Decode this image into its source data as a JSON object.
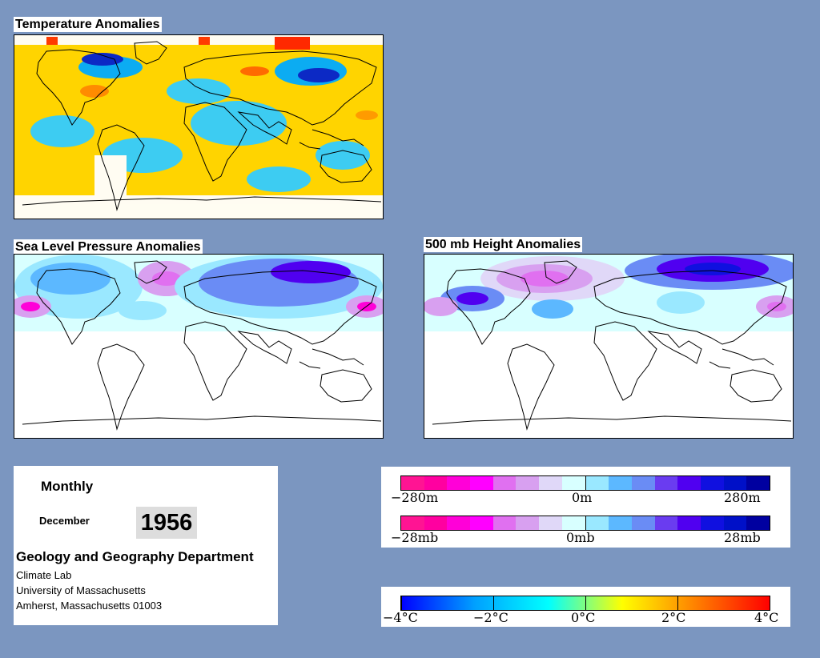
{
  "panels": {
    "temperature": {
      "title": "Temperature Anomalies"
    },
    "slp": {
      "title": "Sea Level Pressure Anomalies"
    },
    "height500": {
      "title": "500 mb Height Anomalies"
    }
  },
  "info": {
    "period": "Monthly",
    "month": "December",
    "year": "1956",
    "department": "Geology and Geography Department",
    "address_lines": [
      "Climate Lab",
      "University of Massachusetts",
      "Amherst, Massachusetts 01003"
    ]
  },
  "legends": {
    "height": {
      "labels": [
        "−280m",
        "0m",
        "280m"
      ],
      "colors": [
        "#ff1493",
        "#ff00a0",
        "#ff00d8",
        "#ff00ff",
        "#e070f0",
        "#d8a0f0",
        "#e0d8f8",
        "#d8ffff",
        "#9ae8ff",
        "#5cb8ff",
        "#6a8cf5",
        "#6a3cf0",
        "#5000f0",
        "#1010e0",
        "#0010c8",
        "#0000a0"
      ]
    },
    "pressure": {
      "labels": [
        "−28mb",
        "0mb",
        "28mb"
      ],
      "colors": [
        "#ff1493",
        "#ff00a0",
        "#ff00d8",
        "#ff00ff",
        "#e070f0",
        "#d8a0f0",
        "#e0d8f8",
        "#d8ffff",
        "#9ae8ff",
        "#5cb8ff",
        "#6a8cf5",
        "#6a3cf0",
        "#5000f0",
        "#1010e0",
        "#0010c8",
        "#0000a0"
      ]
    },
    "temperature": {
      "labels": [
        "−4°C",
        "−2°C",
        "0°C",
        "2°C",
        "4°C"
      ],
      "gradient": [
        "#0000ff",
        "#00a0ff",
        "#00ffff",
        "#ffff00",
        "#ff8000",
        "#ff0000"
      ]
    }
  },
  "colors": {
    "background": "#7b96c0",
    "land_outline": "#000000"
  }
}
